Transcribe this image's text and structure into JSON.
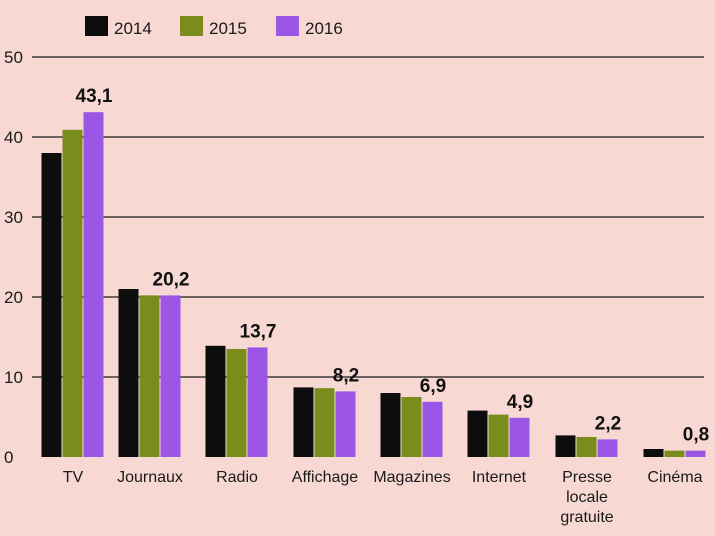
{
  "colors": {
    "background": "#f7d8d3",
    "gridline": "#1a1a1a",
    "text": "#1a1a1a"
  },
  "chart_data": {
    "type": "bar",
    "categories": [
      "TV",
      "Journaux",
      "Radio",
      "Affichage",
      "Magazines",
      "Internet",
      "Presse locale gratuite",
      "Cinéma"
    ],
    "category_lines": [
      [
        "TV"
      ],
      [
        "Journaux"
      ],
      [
        "Radio"
      ],
      [
        "Affichage"
      ],
      [
        "Magazines"
      ],
      [
        "Internet"
      ],
      [
        "Presse",
        "locale",
        "gratuite"
      ],
      [
        "Cinéma"
      ]
    ],
    "series": [
      {
        "name": "2014",
        "color": "#0d0d0d",
        "values": [
          38.0,
          21.0,
          13.9,
          8.7,
          8.0,
          5.8,
          2.7,
          1.0
        ]
      },
      {
        "name": "2015",
        "color": "#7a8c1c",
        "values": [
          40.9,
          20.2,
          13.5,
          8.6,
          7.5,
          5.3,
          2.5,
          0.8
        ]
      },
      {
        "name": "2016",
        "color": "#9b56e6",
        "values": [
          43.1,
          20.2,
          13.7,
          8.2,
          6.9,
          4.9,
          2.2,
          0.8
        ]
      }
    ],
    "data_labels": [
      "43,1",
      "20,2",
      "13,7",
      "8,2",
      "6,9",
      "4,9",
      "2,2",
      "0,8"
    ],
    "y_ticks": [
      0,
      10,
      20,
      30,
      40,
      50
    ],
    "ylim": [
      0,
      50
    ],
    "grid": true,
    "legend_position": "top-left",
    "title": "",
    "xlabel": "",
    "ylabel": ""
  }
}
